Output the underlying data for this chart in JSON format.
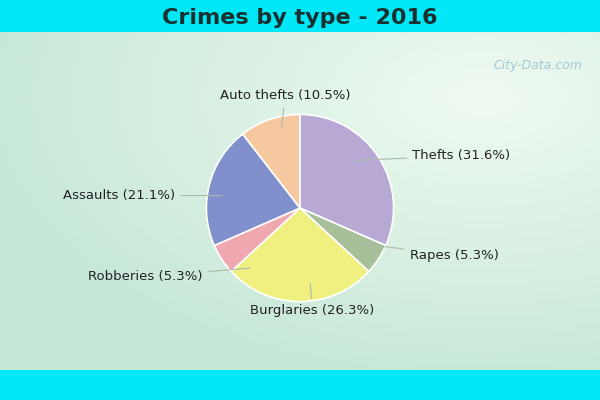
{
  "title": "Crimes by type - 2016",
  "slices": [
    {
      "label": "Thefts (31.6%)",
      "value": 31.6,
      "color": "#b8a9d4"
    },
    {
      "label": "Rapes (5.3%)",
      "value": 5.3,
      "color": "#a8c09a"
    },
    {
      "label": "Burglaries (26.3%)",
      "value": 26.3,
      "color": "#f0f080"
    },
    {
      "label": "Robberies (5.3%)",
      "value": 5.3,
      "color": "#f0a8b0"
    },
    {
      "label": "Assaults (21.1%)",
      "value": 21.1,
      "color": "#8090cc"
    },
    {
      "label": "Auto thefts (10.5%)",
      "value": 10.5,
      "color": "#f5c8a0"
    }
  ],
  "cyan_color": "#00e8f8",
  "bg_color": "#c8e8d8",
  "title_fontsize": 16,
  "label_fontsize": 9.5,
  "watermark": "City-Data.com"
}
